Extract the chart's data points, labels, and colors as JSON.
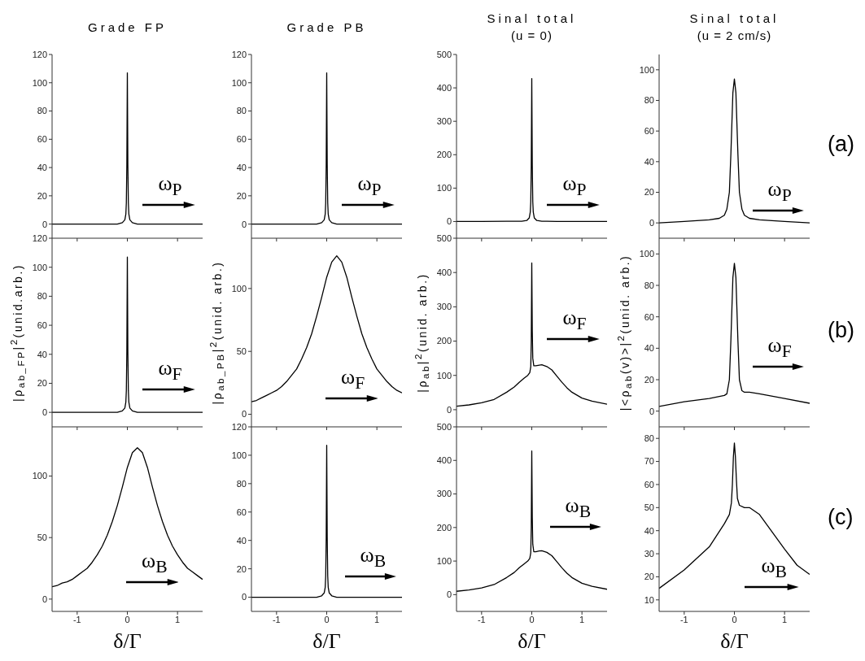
{
  "chart_data": [
    {
      "type": "line",
      "title": "Grade FP",
      "x": [
        -1.5,
        -1,
        -0.5,
        -0.3,
        -0.2,
        -0.1,
        -0.05,
        -0.03,
        -0.02,
        -0.01,
        0,
        0.01,
        0.02,
        0.03,
        0.05,
        0.1,
        0.2,
        0.3,
        0.5,
        1,
        1.5
      ],
      "values": [
        0,
        0,
        0,
        0,
        0,
        1,
        3,
        7,
        15,
        42,
        107,
        42,
        15,
        7,
        3,
        1,
        0,
        0,
        0,
        0,
        0
      ],
      "color": "#000000",
      "xlim": [
        -1.5,
        1.5
      ],
      "xticks": [
        -1,
        0,
        1
      ],
      "ylim": [
        -10,
        120
      ],
      "yticks": [
        0,
        20,
        40,
        60,
        80,
        100,
        120
      ],
      "tick_labels": "y",
      "annotations": [
        "ω$_{P}$"
      ]
    },
    {
      "type": "line",
      "title": "Grade PB",
      "x": [
        -1.5,
        -1,
        -0.5,
        -0.3,
        -0.2,
        -0.1,
        -0.05,
        -0.03,
        -0.02,
        -0.01,
        0,
        0.01,
        0.02,
        0.03,
        0.05,
        0.1,
        0.2,
        0.3,
        0.5,
        1,
        1.5
      ],
      "values": [
        0,
        0,
        0,
        0,
        0,
        1,
        3,
        7,
        15,
        42,
        107,
        42,
        15,
        7,
        3,
        1,
        0,
        0,
        0,
        0,
        0
      ],
      "color": "#000000",
      "xlim": [
        -1.5,
        1.5
      ],
      "xticks": [
        -1,
        0,
        1
      ],
      "ylim": [
        -10,
        120
      ],
      "yticks": [
        0,
        20,
        40,
        60,
        80,
        100,
        120
      ],
      "tick_labels": "y",
      "annotations": [
        "ω$_{P}$"
      ]
    },
    {
      "type": "line",
      "title": "Sinal total",
      "subtitle": "(u = 0)",
      "x": [
        -1.5,
        -1,
        -0.5,
        -0.3,
        -0.2,
        -0.1,
        -0.05,
        -0.03,
        -0.02,
        -0.01,
        0,
        0.01,
        0.02,
        0.03,
        0.05,
        0.1,
        0.2,
        0.3,
        0.5,
        1,
        1.5
      ],
      "values": [
        0,
        0,
        1,
        1,
        1,
        3,
        11,
        28,
        59,
        168,
        428,
        168,
        59,
        28,
        11,
        3,
        1,
        1,
        0,
        0,
        0
      ],
      "color": "#000000",
      "xlim": [
        -1.5,
        1.5
      ],
      "xticks": [
        -1,
        0,
        1
      ],
      "ylim": [
        -50,
        500
      ],
      "yticks": [
        0,
        100,
        200,
        300,
        400,
        500
      ],
      "tick_labels": "y",
      "annotations": [
        "ω$_{P}$"
      ]
    },
    {
      "type": "line",
      "title": "Sinal total",
      "subtitle": "(u = 2 cm/s)",
      "x": [
        -1.5,
        -1,
        -0.5,
        -0.3,
        -0.2,
        -0.15,
        -0.1,
        -0.07,
        -0.05,
        -0.03,
        0,
        0.03,
        0.05,
        0.07,
        0.1,
        0.15,
        0.2,
        0.3,
        0.5,
        1,
        1.5
      ],
      "values": [
        0,
        1,
        2,
        3,
        5,
        9,
        20,
        45,
        65,
        85,
        94,
        85,
        65,
        45,
        20,
        9,
        5,
        3,
        2,
        1,
        0
      ],
      "color": "#000000",
      "xlim": [
        -1.5,
        1.5
      ],
      "xticks": [
        -1,
        0,
        1
      ],
      "ylim": [
        -10,
        110
      ],
      "yticks": [
        0,
        20,
        40,
        60,
        80,
        100
      ],
      "tick_labels": "y",
      "annotations": [
        "ω$_{P}$",
        "(a)"
      ]
    },
    {
      "type": "line",
      "ylabel": "|ρ$_{ab_FP}$|$^{2}$(unid.arb.)",
      "x": [
        -1.5,
        -1,
        -0.5,
        -0.3,
        -0.2,
        -0.1,
        -0.05,
        -0.03,
        -0.02,
        -0.01,
        0,
        0.01,
        0.02,
        0.03,
        0.05,
        0.1,
        0.2,
        0.3,
        0.5,
        1,
        1.5
      ],
      "values": [
        0,
        0,
        0,
        0,
        0,
        1,
        3,
        7,
        15,
        42,
        107,
        42,
        15,
        7,
        3,
        1,
        0,
        0,
        0,
        0,
        0
      ],
      "color": "#000000",
      "xlim": [
        -1.5,
        1.5
      ],
      "xticks": [
        -1,
        0,
        1
      ],
      "ylim": [
        -10,
        120
      ],
      "yticks": [
        0,
        20,
        40,
        60,
        80,
        100,
        120
      ],
      "tick_labels": "y",
      "annotations": [
        "ω$_{F}$"
      ]
    },
    {
      "type": "line",
      "ylabel": "|ρ$_{ab_PB}$|$^{2}$(unid. arb.)",
      "x": [
        -1.5,
        -1.4,
        -1.3,
        -1.2,
        -1.1,
        -1,
        -0.9,
        -0.8,
        -0.7,
        -0.6,
        -0.5,
        -0.4,
        -0.3,
        -0.2,
        -0.1,
        0,
        0.1,
        0.2,
        0.3,
        0.4,
        0.5,
        0.6,
        0.7,
        0.8,
        0.9,
        1,
        1.1,
        1.2,
        1.3,
        1.4,
        1.5
      ],
      "values": [
        10,
        11,
        13,
        15,
        17,
        19,
        22,
        26,
        31,
        36,
        44,
        53,
        64,
        78,
        93,
        109,
        121,
        126,
        121,
        109,
        93,
        78,
        64,
        53,
        44,
        36,
        31,
        26,
        22,
        19,
        17
      ],
      "color": "#000000",
      "xlim": [
        -1.5,
        1.5
      ],
      "xticks": [
        -1,
        0,
        1
      ],
      "ylim": [
        -10,
        140
      ],
      "yticks": [
        0,
        50,
        100
      ],
      "tick_labels": "y",
      "annotations": [
        "ω$_{F}$"
      ]
    },
    {
      "type": "line",
      "ylabel": "|ρ$_{ab}$|$^{2}$(unid. arb.)",
      "x": [
        -1.5,
        -1.25,
        -1,
        -0.75,
        -0.5,
        -0.35,
        -0.25,
        -0.15,
        -0.08,
        -0.04,
        -0.02,
        -0.01,
        0,
        0.01,
        0.02,
        0.04,
        0.08,
        0.15,
        0.2,
        0.3,
        0.4,
        0.5,
        0.6,
        0.7,
        0.8,
        1,
        1.2,
        1.5
      ],
      "values": [
        10,
        14,
        20,
        30,
        51,
        66,
        80,
        92,
        100,
        108,
        125,
        200,
        428,
        230,
        150,
        128,
        128,
        130,
        131,
        126,
        116,
        98,
        80,
        64,
        51,
        34,
        25,
        16
      ],
      "color": "#000000",
      "xlim": [
        -1.5,
        1.5
      ],
      "xticks": [
        -1,
        0,
        1
      ],
      "ylim": [
        -50,
        500
      ],
      "yticks": [
        0,
        100,
        200,
        300,
        400,
        500
      ],
      "tick_labels": "y",
      "annotations": [
        "ω$_{F}$"
      ]
    },
    {
      "type": "line",
      "ylabel": "|<ρ$_{ab}$(v)>|$^{2}$(unid. arb.)",
      "x": [
        -1.5,
        -1,
        -0.5,
        -0.2,
        -0.15,
        -0.1,
        -0.07,
        -0.05,
        -0.03,
        0,
        0.03,
        0.05,
        0.07,
        0.1,
        0.15,
        0.2,
        0.3,
        0.5,
        1,
        1.5
      ],
      "values": [
        3,
        6,
        8,
        10,
        11,
        20,
        45,
        65,
        85,
        94,
        85,
        65,
        45,
        20,
        13,
        12,
        12,
        11,
        8,
        5
      ],
      "color": "#000000",
      "xlim": [
        -1.5,
        1.5
      ],
      "xticks": [
        -1,
        0,
        1
      ],
      "ylim": [
        -10,
        110
      ],
      "yticks": [
        0,
        20,
        40,
        60,
        80,
        100
      ],
      "tick_labels": "y",
      "annotations": [
        "ω$_{F}$",
        "(b)"
      ]
    },
    {
      "type": "line",
      "xlabel": "δ/Γ",
      "x": [
        -1.5,
        -1.4,
        -1.3,
        -1.2,
        -1.1,
        -1,
        -0.9,
        -0.8,
        -0.7,
        -0.6,
        -0.5,
        -0.4,
        -0.3,
        -0.2,
        -0.1,
        0,
        0.1,
        0.2,
        0.3,
        0.4,
        0.5,
        0.6,
        0.7,
        0.8,
        0.9,
        1,
        1.1,
        1.2,
        1.3,
        1.4,
        1.5
      ],
      "values": [
        10,
        11,
        13,
        14,
        16,
        19,
        22,
        25,
        30,
        36,
        43,
        52,
        63,
        76,
        91,
        107,
        119,
        123,
        119,
        107,
        91,
        76,
        63,
        52,
        43,
        36,
        30,
        25,
        22,
        19,
        16
      ],
      "color": "#000000",
      "xlim": [
        -1.5,
        1.5
      ],
      "xticks": [
        -1,
        0,
        1
      ],
      "ylim": [
        -10,
        140
      ],
      "yticks": [
        0,
        50,
        100
      ],
      "annotations": [
        "ω$_{B}$"
      ]
    },
    {
      "type": "line",
      "xlabel": "δ/Γ",
      "x": [
        -1.5,
        -1,
        -0.5,
        -0.3,
        -0.2,
        -0.1,
        -0.05,
        -0.03,
        -0.02,
        -0.01,
        0,
        0.01,
        0.02,
        0.03,
        0.05,
        0.1,
        0.2,
        0.3,
        0.5,
        1,
        1.5
      ],
      "values": [
        0,
        0,
        0,
        0,
        0,
        1,
        3,
        7,
        15,
        42,
        107,
        42,
        15,
        7,
        3,
        1,
        0,
        0,
        0,
        0,
        0
      ],
      "color": "#000000",
      "xlim": [
        -1.5,
        1.5
      ],
      "xticks": [
        -1,
        0,
        1
      ],
      "ylim": [
        -10,
        120
      ],
      "yticks": [
        0,
        20,
        40,
        60,
        80,
        100,
        120
      ],
      "annotations": [
        "ω$_{B}$"
      ]
    },
    {
      "type": "line",
      "xlabel": "δ/Γ",
      "x": [
        -1.5,
        -1.25,
        -1,
        -0.75,
        -0.5,
        -0.35,
        -0.25,
        -0.15,
        -0.08,
        -0.04,
        -0.02,
        -0.01,
        0,
        0.01,
        0.02,
        0.04,
        0.08,
        0.15,
        0.2,
        0.3,
        0.4,
        0.5,
        0.6,
        0.7,
        0.8,
        1,
        1.2,
        1.5
      ],
      "values": [
        10,
        14,
        20,
        30,
        51,
        66,
        80,
        92,
        100,
        108,
        125,
        200,
        428,
        230,
        150,
        128,
        128,
        130,
        131,
        126,
        116,
        98,
        80,
        64,
        51,
        34,
        25,
        16
      ],
      "color": "#000000",
      "xlim": [
        -1.5,
        1.5
      ],
      "xticks": [
        -1,
        0,
        1
      ],
      "ylim": [
        -50,
        500
      ],
      "yticks": [
        0,
        100,
        200,
        300,
        400,
        500
      ],
      "annotations": [
        "ω$_{B}$"
      ]
    },
    {
      "type": "line",
      "xlabel": "δ/Γ",
      "x": [
        -1.5,
        -1,
        -0.5,
        -0.2,
        -0.1,
        -0.06,
        -0.04,
        -0.02,
        0,
        0.02,
        0.04,
        0.06,
        0.1,
        0.2,
        0.3,
        0.5,
        0.8,
        1,
        1.25,
        1.5
      ],
      "values": [
        15,
        23,
        33,
        43,
        47,
        52,
        60,
        72,
        78,
        72,
        62,
        54,
        51,
        50,
        50,
        47,
        38,
        32,
        25,
        21
      ],
      "color": "#000000",
      "xlim": [
        -1.5,
        1.5
      ],
      "xticks": [
        -1,
        0,
        1
      ],
      "ylim": [
        5,
        85
      ],
      "yticks": [
        10,
        20,
        30,
        40,
        50,
        60,
        70,
        80
      ],
      "annotations": [
        "ω$_{B}$",
        "(c)"
      ]
    }
  ]
}
